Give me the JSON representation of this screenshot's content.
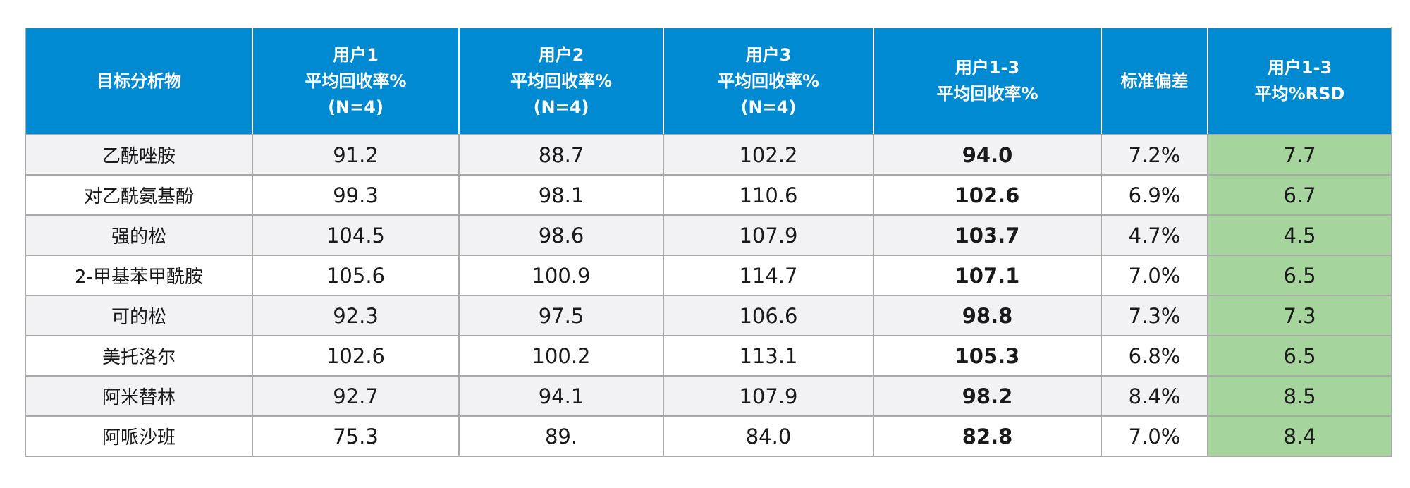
{
  "table": {
    "headers": [
      {
        "lines": [
          "目标分析物"
        ]
      },
      {
        "lines": [
          "用户1",
          "平均回收率%",
          "(N=4)"
        ]
      },
      {
        "lines": [
          "用户2",
          "平均回收率%",
          "(N=4)"
        ]
      },
      {
        "lines": [
          "用户3",
          "平均回收率%",
          "(N=4)"
        ]
      },
      {
        "lines": [
          "用户1-3",
          "平均回收率%"
        ]
      },
      {
        "lines": [
          "标准偏差"
        ]
      },
      {
        "lines": [
          "用户1-3",
          "平均%RSD"
        ]
      }
    ],
    "rows": [
      [
        "乙酰唑胺",
        "91.2",
        "88.7",
        "102.2",
        "94.0",
        "7.2%",
        "7.7"
      ],
      [
        "对乙酰氨基酚",
        "99.3",
        "98.1",
        "110.6",
        "102.6",
        "6.9%",
        "6.7"
      ],
      [
        "强的松",
        "104.5",
        "98.6",
        "107.9",
        "103.7",
        "4.7%",
        "4.5"
      ],
      [
        "2-甲基苯甲酰胺",
        "105.6",
        "100.9",
        "114.7",
        "107.1",
        "7.0%",
        "6.5"
      ],
      [
        "可的松",
        "92.3",
        "97.5",
        "106.6",
        "98.8",
        "7.3%",
        "7.3"
      ],
      [
        "美托洛尔",
        "102.6",
        "100.2",
        "113.1",
        "105.3",
        "6.8%",
        "6.5"
      ],
      [
        "阿米替林",
        "92.7",
        "94.1",
        "107.9",
        "98.2",
        "8.4%",
        "8.5"
      ],
      [
        "阿哌沙班",
        "75.3",
        "89.",
        "84.0",
        "82.8",
        "7.0%",
        "8.4"
      ]
    ]
  },
  "colors": {
    "header_bg": "#008ad1",
    "rsd_highlight": "#a5d59c"
  }
}
